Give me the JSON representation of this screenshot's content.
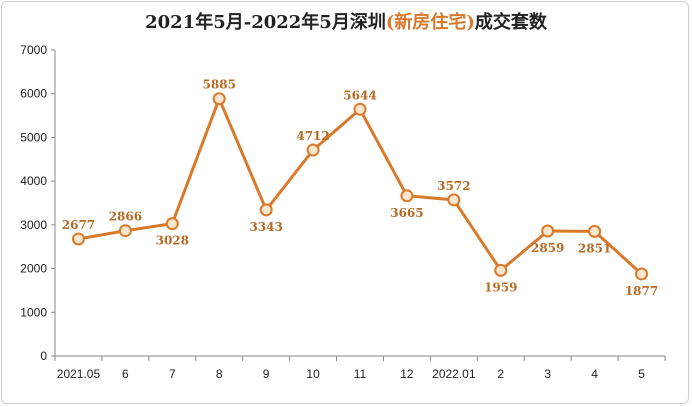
{
  "chart_data": {
    "type": "line",
    "title_parts": {
      "prefix": "2021年5月-2022年5月深圳",
      "highlight": "(新房住宅)",
      "suffix": "成交套数"
    },
    "categories": [
      "2021.05",
      "6",
      "7",
      "8",
      "9",
      "10",
      "11",
      "12",
      "2022.01",
      "2",
      "3",
      "4",
      "5"
    ],
    "series": [
      {
        "values": [
          2677,
          2866,
          3028,
          5885,
          3343,
          4712,
          5644,
          3665,
          3572,
          1959,
          2859,
          2851,
          1877
        ]
      }
    ],
    "data_labels": [
      "2677",
      "2866",
      "3028",
      "5885",
      "3343",
      "4712",
      "5644",
      "3665",
      "3572",
      "1959",
      "2859",
      "2851",
      "1877"
    ],
    "label_position": [
      "above",
      "above",
      "below",
      "above",
      "below",
      "above",
      "above",
      "below",
      "above",
      "below",
      "below",
      "below",
      "below"
    ],
    "y_ticks": [
      0,
      1000,
      2000,
      3000,
      4000,
      5000,
      6000,
      7000
    ],
    "ylim": [
      0,
      7000
    ],
    "grid": false,
    "legend": "none",
    "colors": {
      "line": "#d97a2a",
      "marker_fill": "#fbe6d0",
      "label": "#b76a22",
      "axis": "#888888"
    }
  }
}
